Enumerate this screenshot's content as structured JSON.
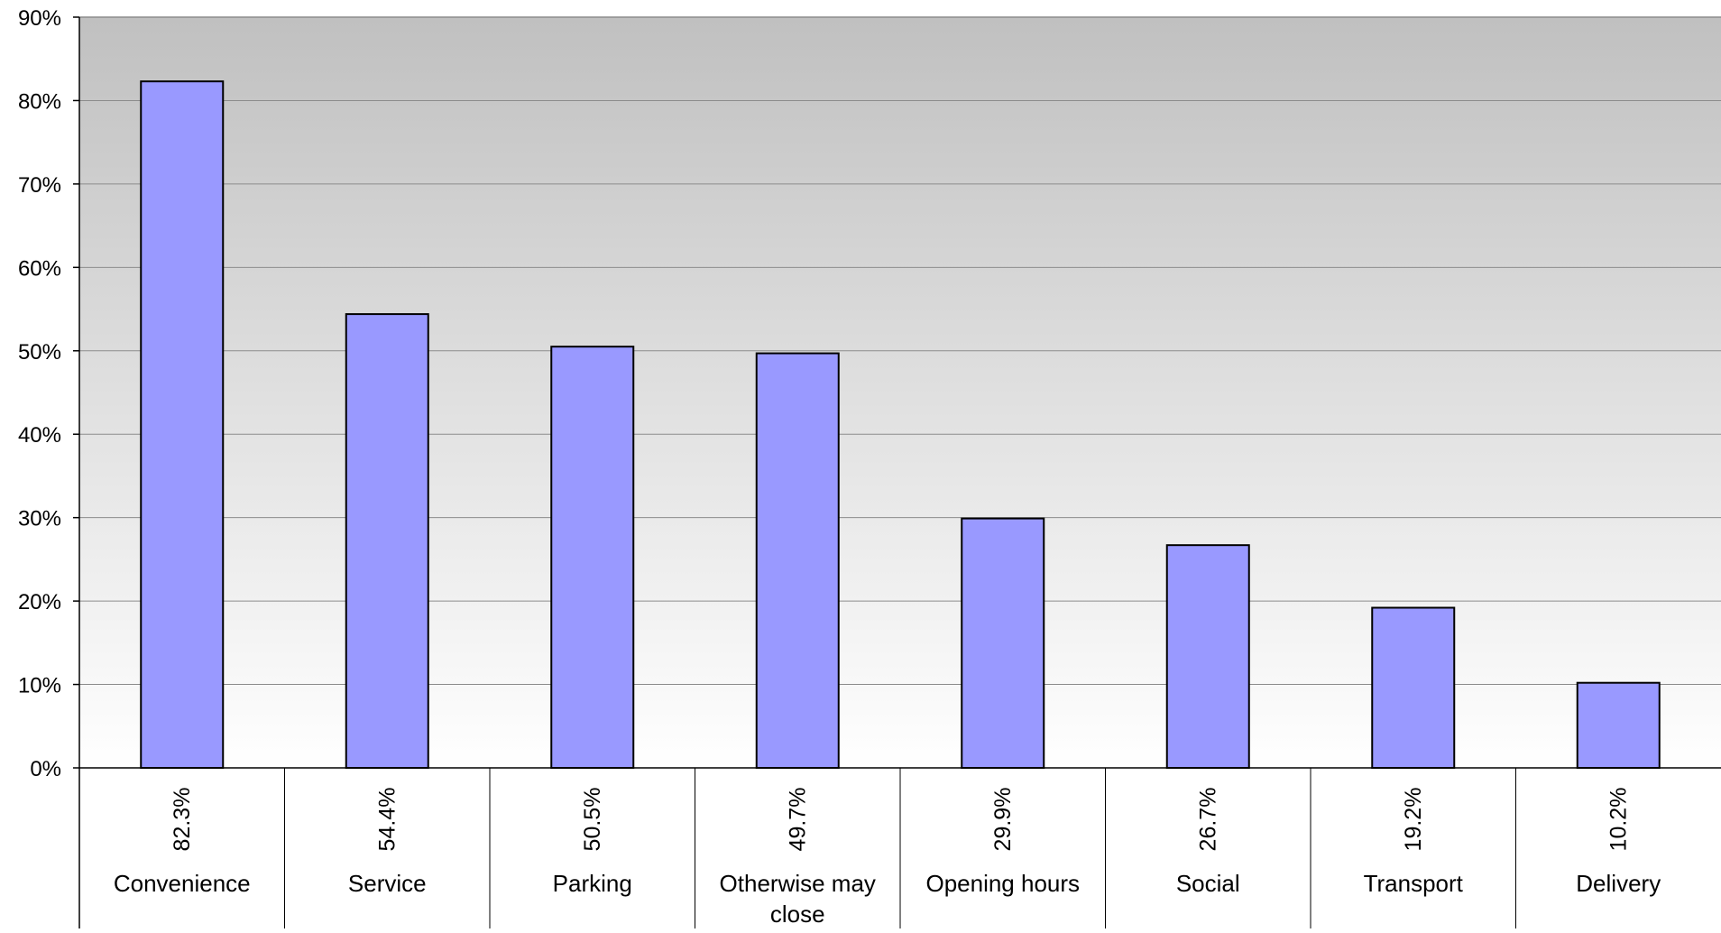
{
  "chart_data": {
    "type": "bar",
    "categories": [
      "Convenience",
      "Service",
      "Parking",
      "Otherwise may close",
      "Opening hours",
      "Social",
      "Transport",
      "Delivery"
    ],
    "category_lines": [
      [
        "Convenience"
      ],
      [
        "Service"
      ],
      [
        "Parking"
      ],
      [
        "Otherwise may",
        "close"
      ],
      [
        "Opening hours"
      ],
      [
        "Social"
      ],
      [
        "Transport"
      ],
      [
        "Delivery"
      ]
    ],
    "values": [
      82.3,
      54.4,
      50.5,
      49.7,
      29.9,
      26.7,
      19.2,
      10.2
    ],
    "data_labels": [
      "82.3%",
      "54.4%",
      "50.5%",
      "49.7%",
      "29.9%",
      "26.7%",
      "19.2%",
      "10.2%"
    ],
    "yticks": [
      0,
      10,
      20,
      30,
      40,
      50,
      60,
      70,
      80,
      90
    ],
    "ytick_labels": [
      "0%",
      "10%",
      "20%",
      "30%",
      "40%",
      "50%",
      "60%",
      "70%",
      "80%",
      "90%"
    ],
    "ylim": [
      0,
      90
    ],
    "title": "",
    "xlabel": "",
    "ylabel": "",
    "grid": true,
    "legend": "none",
    "colors": {
      "bar_fill": "#9999ff",
      "bar_stroke": "#000000",
      "plot_bg_top": "#c0c0c0",
      "plot_bg_bottom": "#ffffff",
      "gridline": "#8c8c8c",
      "axis": "#000000"
    }
  }
}
